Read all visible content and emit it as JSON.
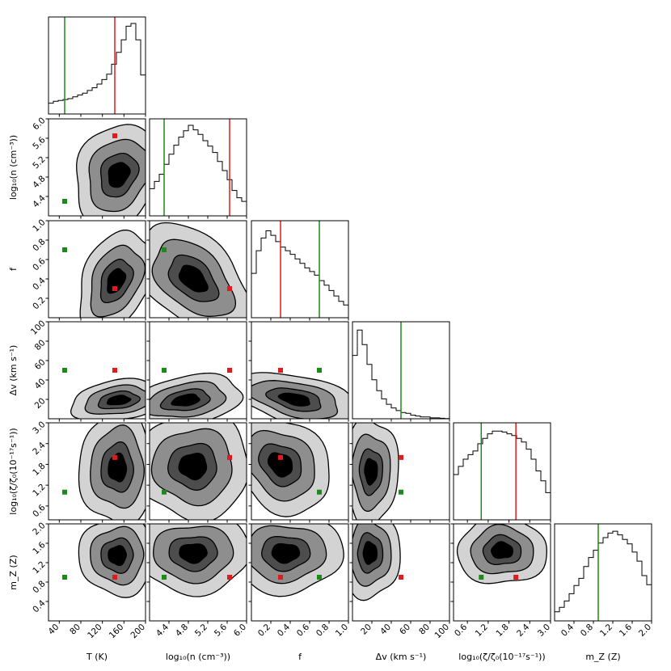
{
  "chart_data": {
    "type": "corner",
    "parameters": [
      {
        "key": "T",
        "label": "T (K)",
        "range": [
          20,
          200
        ],
        "ticks": [
          "40",
          "80",
          "120",
          "160",
          "200"
        ],
        "tick_values": [
          40,
          80,
          120,
          160,
          200
        ]
      },
      {
        "key": "logn",
        "label": "log₁₀(n (cm⁻³))",
        "range": [
          4.0,
          6.0
        ],
        "ticks": [
          "4.4",
          "4.8",
          "5.2",
          "5.6",
          "6.0"
        ],
        "tick_values": [
          4.4,
          4.8,
          5.2,
          5.6,
          6.0
        ]
      },
      {
        "key": "f",
        "label": "f",
        "range": [
          0,
          1.0
        ],
        "ticks": [
          "0.2",
          "0.4",
          "0.6",
          "0.8",
          "1.0"
        ],
        "tick_values": [
          0.2,
          0.4,
          0.6,
          0.8,
          1.0
        ]
      },
      {
        "key": "dv",
        "label": "Δv (km s⁻¹)",
        "range": [
          0,
          100
        ],
        "ticks": [
          "20",
          "40",
          "60",
          "80",
          "100"
        ],
        "tick_values": [
          20,
          40,
          60,
          80,
          100
        ]
      },
      {
        "key": "zeta",
        "label": "log₁₀(ζ/ζ₀(10⁻¹⁷s⁻¹))",
        "range": [
          0.2,
          3.0
        ],
        "ticks": [
          "0.6",
          "1.2",
          "1.8",
          "2.4",
          "3.0"
        ],
        "tick_values": [
          0.6,
          1.2,
          1.8,
          2.4,
          3.0
        ]
      },
      {
        "key": "mz",
        "label": "m_Z (Z)",
        "range": [
          0,
          2.0
        ],
        "ticks": [
          "0.4",
          "0.8",
          "1.2",
          "1.6",
          "2.0"
        ],
        "tick_values": [
          0.4,
          0.8,
          1.2,
          1.6,
          2.0
        ]
      }
    ],
    "markers": {
      "red": {
        "color": "#e31a1c",
        "values": [
          143,
          5.65,
          0.3,
          50,
          2.0,
          0.9
        ]
      },
      "green": {
        "color": "#1a8a1a",
        "values": [
          50,
          4.3,
          0.7,
          50,
          1.0,
          0.9
        ]
      }
    },
    "histograms": [
      [
        0.12,
        0.14,
        0.15,
        0.16,
        0.17,
        0.19,
        0.21,
        0.23,
        0.26,
        0.29,
        0.33,
        0.38,
        0.44,
        0.55,
        0.68,
        0.82,
        0.97,
        1.0,
        0.82,
        0.43
      ],
      [
        0.3,
        0.38,
        0.46,
        0.57,
        0.68,
        0.78,
        0.87,
        0.94,
        1.0,
        0.95,
        0.9,
        0.83,
        0.77,
        0.7,
        0.6,
        0.5,
        0.4,
        0.28,
        0.2,
        0.16
      ],
      [
        0.49,
        0.74,
        0.88,
        0.96,
        0.91,
        0.84,
        0.78,
        0.74,
        0.7,
        0.65,
        0.6,
        0.55,
        0.51,
        0.47,
        0.41,
        0.36,
        0.3,
        0.24,
        0.18,
        0.14
      ],
      [
        0.7,
        0.98,
        0.82,
        0.6,
        0.43,
        0.31,
        0.22,
        0.16,
        0.12,
        0.09,
        0.07,
        0.06,
        0.04,
        0.03,
        0.02,
        0.02,
        0.01,
        0.01,
        0.005,
        0.003
      ],
      [
        0.5,
        0.59,
        0.67,
        0.72,
        0.76,
        0.84,
        0.9,
        0.95,
        0.98,
        0.98,
        0.97,
        0.95,
        0.93,
        0.9,
        0.86,
        0.78,
        0.67,
        0.54,
        0.43,
        0.3
      ],
      [
        0.1,
        0.15,
        0.22,
        0.3,
        0.39,
        0.47,
        0.6,
        0.7,
        0.78,
        0.86,
        0.92,
        0.97,
        0.99,
        0.95,
        0.9,
        0.85,
        0.76,
        0.66,
        0.5,
        0.4
      ]
    ],
    "fill_colors": [
      "#d3d3d3",
      "#8e8e8e",
      "#4d4d4d",
      "#000000"
    ],
    "contour_levels_sigma": [
      1,
      2,
      3
    ],
    "peaks": [
      {
        "row": 1,
        "col": 0,
        "center": [
          150,
          4.85
        ],
        "sd": [
          35,
          0.45
        ],
        "rho": 0.2
      },
      {
        "row": 2,
        "col": 0,
        "center": [
          145,
          0.38
        ],
        "sd": [
          30,
          0.22
        ],
        "rho": 0.35
      },
      {
        "row": 2,
        "col": 1,
        "center": [
          4.9,
          0.4
        ],
        "sd": [
          0.5,
          0.24
        ],
        "rho": -0.45
      },
      {
        "row": 3,
        "col": 0,
        "center": [
          150,
          19
        ],
        "sd": [
          38,
          9
        ],
        "rho": 0.25
      },
      {
        "row": 3,
        "col": 1,
        "center": [
          4.75,
          19
        ],
        "sd": [
          0.5,
          11
        ],
        "rho": 0.3
      },
      {
        "row": 3,
        "col": 2,
        "center": [
          0.45,
          20
        ],
        "sd": [
          0.28,
          12
        ],
        "rho": -0.45
      },
      {
        "row": 4,
        "col": 0,
        "center": [
          148,
          1.7
        ],
        "sd": [
          30,
          0.7
        ],
        "rho": 0.0
      },
      {
        "row": 4,
        "col": 1,
        "center": [
          4.9,
          1.75
        ],
        "sd": [
          0.5,
          0.65
        ],
        "rho": 0.0
      },
      {
        "row": 4,
        "col": 2,
        "center": [
          0.3,
          1.8
        ],
        "sd": [
          0.22,
          0.6
        ],
        "rho": -0.25
      },
      {
        "row": 4,
        "col": 3,
        "center": [
          19,
          1.6
        ],
        "sd": [
          12,
          0.65
        ],
        "rho": 0.0
      },
      {
        "row": 5,
        "col": 0,
        "center": [
          148,
          1.35
        ],
        "sd": [
          30,
          0.35
        ],
        "rho": 0.0
      },
      {
        "row": 5,
        "col": 1,
        "center": [
          4.9,
          1.4
        ],
        "sd": [
          0.5,
          0.35
        ],
        "rho": 0.0
      },
      {
        "row": 5,
        "col": 2,
        "center": [
          0.35,
          1.4
        ],
        "sd": [
          0.25,
          0.35
        ],
        "rho": 0.0
      },
      {
        "row": 5,
        "col": 3,
        "center": [
          18,
          1.4
        ],
        "sd": [
          13,
          0.4
        ],
        "rho": 0.0
      },
      {
        "row": 5,
        "col": 4,
        "center": [
          1.6,
          1.45
        ],
        "sd": [
          0.55,
          0.3
        ],
        "rho": 0.0
      }
    ]
  }
}
